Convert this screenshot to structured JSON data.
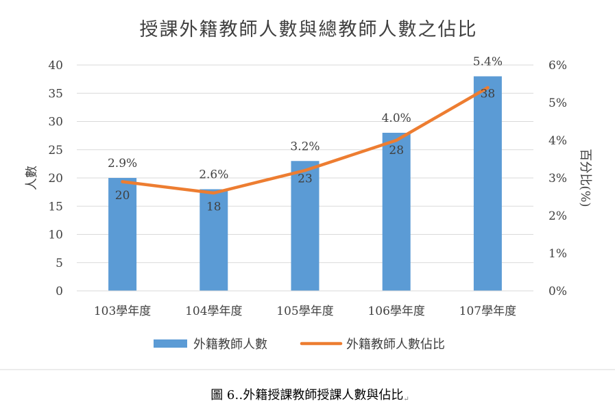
{
  "chart_data": {
    "type": "bar+line",
    "title": "授課外籍教師人數與總教師人數之佔比",
    "categories": [
      "103學年度",
      "104學年度",
      "105學年度",
      "106學年度",
      "107學年度"
    ],
    "series": [
      {
        "name": "外籍教師人數",
        "type": "bar",
        "axis": "left",
        "values": [
          20,
          18,
          23,
          28,
          38
        ],
        "labels": [
          "20",
          "18",
          "23",
          "28",
          "38"
        ],
        "color": "#5B9BD5"
      },
      {
        "name": "外籍教師人數佔比",
        "type": "line",
        "axis": "right",
        "values": [
          2.9,
          2.6,
          3.2,
          4.0,
          5.4
        ],
        "labels": [
          "2.9%",
          "2.6%",
          "3.2%",
          "4.0%",
          "5.4%"
        ],
        "color": "#ED7D31"
      }
    ],
    "y_left": {
      "label": "人數",
      "ylim": [
        0,
        40
      ],
      "ticks": [
        "0",
        "5",
        "10",
        "15",
        "20",
        "25",
        "30",
        "35",
        "40"
      ]
    },
    "y_right": {
      "label": "百分比(%)",
      "ylim": [
        0,
        6
      ],
      "ticks": [
        "0%",
        "1%",
        "2%",
        "3%",
        "4%",
        "5%",
        "6%"
      ]
    },
    "grid": true,
    "legend": "bottom"
  },
  "caption": "圖 6‥外籍授課教師授課人數與佔比",
  "caption_mark": "↵"
}
